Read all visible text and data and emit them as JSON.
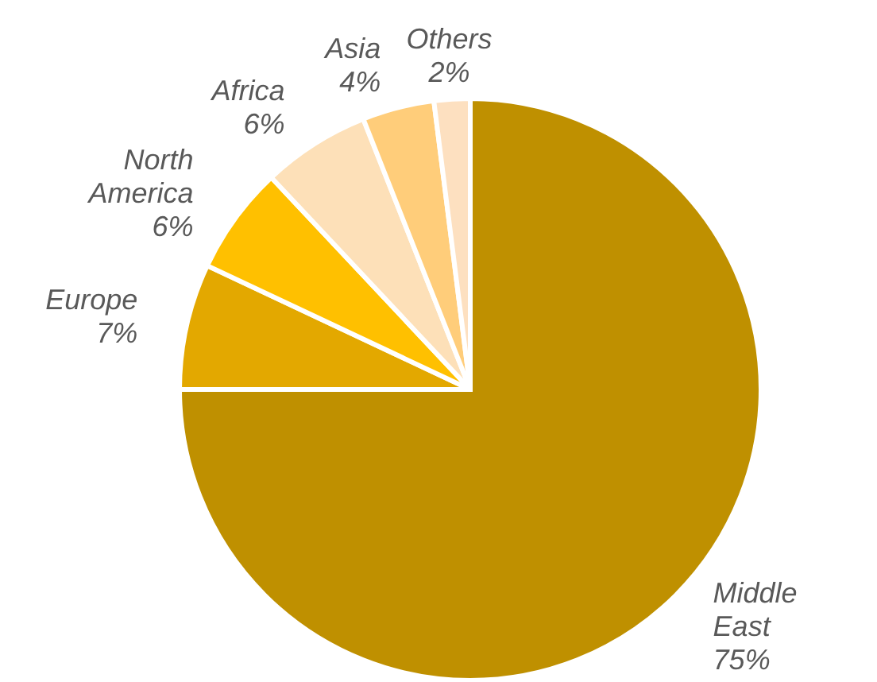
{
  "chart_data": {
    "type": "pie",
    "categories": [
      "Middle East",
      "Europe",
      "North America",
      "Africa",
      "Asia",
      "Others"
    ],
    "values": [
      75,
      7,
      6,
      6,
      4,
      2
    ],
    "colors": [
      "#bf9000",
      "#e3a800",
      "#ffc000",
      "#fde0b8",
      "#ffcd7a",
      "#fde0c0"
    ],
    "value_labels": [
      "75%",
      "7%",
      "6%",
      "6%",
      "4%",
      "2%"
    ]
  }
}
